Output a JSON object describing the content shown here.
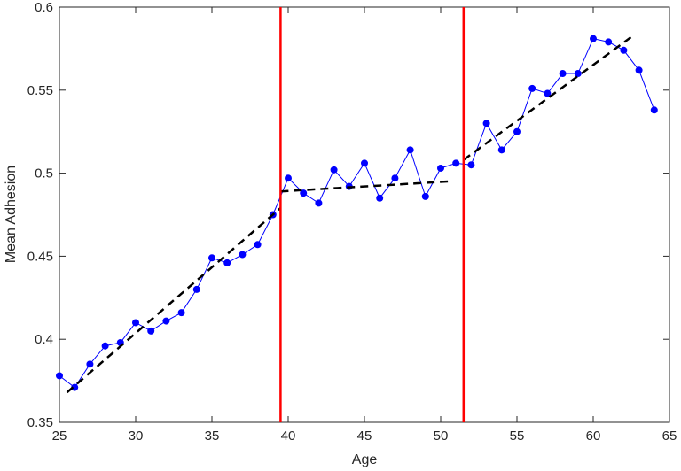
{
  "chart_data": {
    "type": "line",
    "xlabel": "Age",
    "ylabel": "Mean Adhesion",
    "xlim": [
      25,
      65
    ],
    "xticks": [
      25,
      30,
      35,
      40,
      45,
      50,
      55,
      60,
      65
    ],
    "ylim": [
      0.35,
      0.6
    ],
    "yticks": [
      0.35,
      0.4,
      0.45,
      0.5,
      0.55,
      0.6
    ],
    "series": [
      {
        "color": "#0000ff",
        "markers": true,
        "dashed": false,
        "x": [
          25,
          26,
          27,
          28,
          29,
          30,
          31,
          32,
          33,
          34,
          35,
          36,
          37,
          38,
          39,
          40,
          41,
          42,
          43,
          44,
          45,
          46,
          47,
          48,
          49,
          50,
          51,
          52,
          53,
          54,
          55,
          56,
          57,
          58,
          59,
          60,
          61,
          62,
          63,
          64
        ],
        "values": [
          0.378,
          0.371,
          0.385,
          0.396,
          0.398,
          0.41,
          0.405,
          0.411,
          0.416,
          0.43,
          0.449,
          0.446,
          0.451,
          0.457,
          0.475,
          0.497,
          0.488,
          0.482,
          0.502,
          0.492,
          0.506,
          0.485,
          0.497,
          0.514,
          0.486,
          0.503,
          0.506,
          0.505,
          0.53,
          0.514,
          0.525,
          0.551,
          0.548,
          0.56,
          0.56,
          0.581,
          0.579,
          0.574,
          0.562,
          0.538
        ]
      },
      {
        "color": "#000000",
        "markers": false,
        "dashed": true,
        "x": [
          25.5,
          39.5
        ],
        "values": [
          0.368,
          0.479
        ]
      },
      {
        "color": "#000000",
        "markers": false,
        "dashed": true,
        "x": [
          39.5,
          50.5
        ],
        "values": [
          0.489,
          0.495
        ]
      },
      {
        "color": "#000000",
        "markers": false,
        "dashed": true,
        "x": [
          51.5,
          62.5
        ],
        "values": [
          0.508,
          0.582
        ]
      }
    ],
    "vlines": {
      "color": "#ff0000",
      "x": [
        39.5,
        51.5
      ]
    }
  }
}
